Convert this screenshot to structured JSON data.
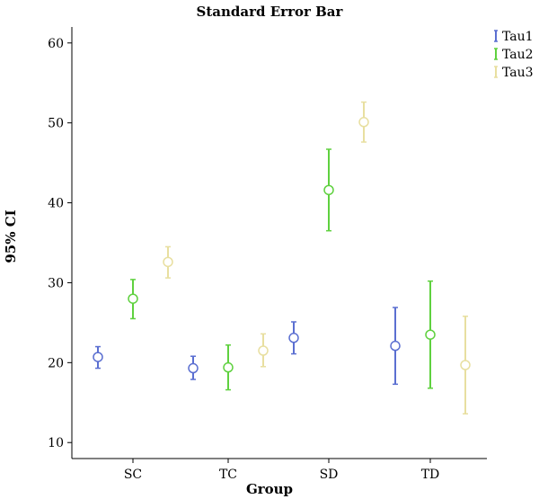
{
  "chart_data": {
    "type": "scatter",
    "title": "Standard Error Bar",
    "xlabel": "Group",
    "ylabel": "95% CI",
    "categories": [
      "SC",
      "TC",
      "SD",
      "TD"
    ],
    "yticks": [
      10,
      20,
      30,
      40,
      50,
      60
    ],
    "ylim": [
      8,
      62
    ],
    "grid": false,
    "legend_position": "top-right",
    "series": [
      {
        "name": "Tau1",
        "color": "#5b6fd1",
        "points": [
          {
            "category": "SC",
            "mean": 20.7,
            "low": 19.3,
            "high": 22.0
          },
          {
            "category": "TC",
            "mean": 19.3,
            "low": 17.9,
            "high": 20.8
          },
          {
            "category": "SD",
            "mean": 23.1,
            "low": 21.1,
            "high": 25.1
          },
          {
            "category": "TD",
            "mean": 22.1,
            "low": 17.3,
            "high": 26.9
          }
        ]
      },
      {
        "name": "Tau2",
        "color": "#5fd13f",
        "points": [
          {
            "category": "SC",
            "mean": 28.0,
            "low": 25.5,
            "high": 30.4
          },
          {
            "category": "TC",
            "mean": 19.4,
            "low": 16.6,
            "high": 22.2
          },
          {
            "category": "SD",
            "mean": 41.6,
            "low": 36.5,
            "high": 46.7
          },
          {
            "category": "TD",
            "mean": 23.5,
            "low": 16.8,
            "high": 30.2
          }
        ]
      },
      {
        "name": "Tau3",
        "color": "#e8dfa0",
        "points": [
          {
            "category": "SC",
            "mean": 32.6,
            "low": 30.6,
            "high": 34.5
          },
          {
            "category": "TC",
            "mean": 21.5,
            "low": 19.5,
            "high": 23.6
          },
          {
            "category": "SD",
            "mean": 50.1,
            "low": 47.6,
            "high": 52.6
          },
          {
            "category": "TD",
            "mean": 19.7,
            "low": 13.6,
            "high": 25.8
          }
        ]
      }
    ]
  }
}
